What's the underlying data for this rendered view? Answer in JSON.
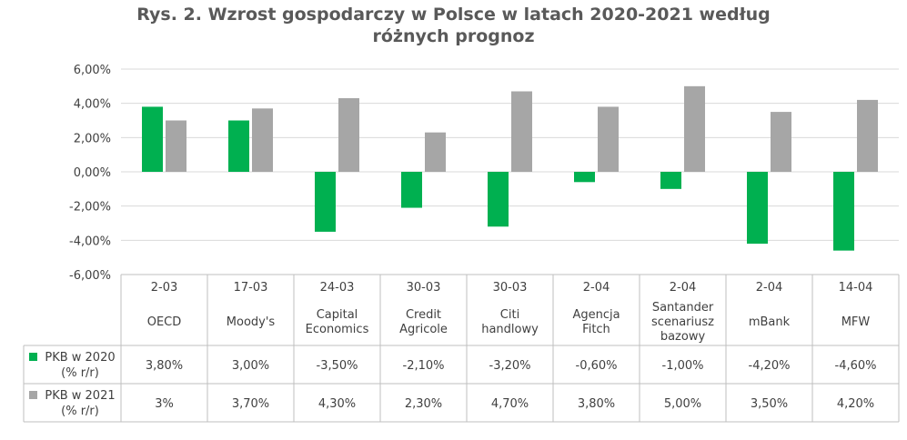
{
  "title_line1": "Rys. 2. Wzrost gospodarczy w Polsce w latach 2020-2021 według",
  "title_line2": "różnych prognoz",
  "colors": {
    "pkb2020": "#00b050",
    "pkb2021": "#a6a6a6",
    "grid": "#d9d9d9",
    "table_border": "#bfbfbf"
  },
  "chart_data": {
    "type": "bar",
    "title": "Rys. 2. Wzrost gospodarczy w Polsce w latach 2020-2021 według różnych prognoz",
    "ylim": [
      -6,
      6
    ],
    "yticks": [
      -6,
      -4,
      -2,
      0,
      2,
      4,
      6
    ],
    "ytick_labels": [
      "-6,00%",
      "-4,00%",
      "-2,00%",
      "0,00%",
      "2,00%",
      "4,00%",
      "6,00%"
    ],
    "grid": true,
    "legend": "data-table",
    "categories": [
      {
        "date": "2-03",
        "name": [
          "OECD"
        ]
      },
      {
        "date": "17-03",
        "name": [
          "Moody's"
        ]
      },
      {
        "date": "24-03",
        "name": [
          "Capital",
          "Economics"
        ]
      },
      {
        "date": "30-03",
        "name": [
          "Credit",
          "Agricole"
        ]
      },
      {
        "date": "30-03",
        "name": [
          "Citi",
          "handlowy"
        ]
      },
      {
        "date": "2-04",
        "name": [
          "Agencja",
          "Fitch"
        ]
      },
      {
        "date": "2-04",
        "name": [
          "Santander",
          "scenariusz",
          "bazowy"
        ]
      },
      {
        "date": "2-04",
        "name": [
          "mBank"
        ]
      },
      {
        "date": "14-04",
        "name": [
          "MFW"
        ]
      }
    ],
    "series": [
      {
        "name": [
          "PKB w 2020",
          "(% r/r)"
        ],
        "values": [
          3.8,
          3.0,
          -3.5,
          -2.1,
          -3.2,
          -0.6,
          -1.0,
          -4.2,
          -4.6
        ],
        "labels": [
          "3,80%",
          "3,00%",
          "-3,50%",
          "-2,10%",
          "-3,20%",
          "-0,60%",
          "-1,00%",
          "-4,20%",
          "-4,60%"
        ]
      },
      {
        "name": [
          "PKB w 2021",
          "(% r/r)"
        ],
        "values": [
          3.0,
          3.7,
          4.3,
          2.3,
          4.7,
          3.8,
          5.0,
          3.5,
          4.2
        ],
        "labels": [
          "3%",
          "3,70%",
          "4,30%",
          "2,30%",
          "4,70%",
          "3,80%",
          "5,00%",
          "3,50%",
          "4,20%"
        ]
      }
    ]
  }
}
